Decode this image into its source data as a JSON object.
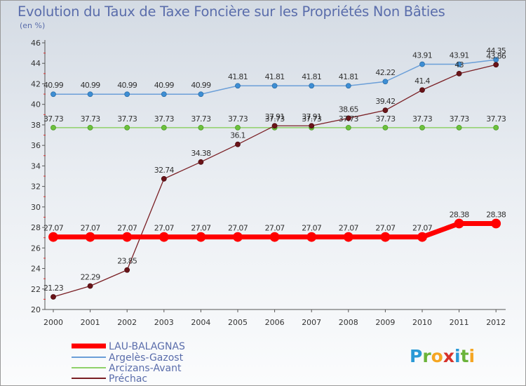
{
  "chart_data": {
    "type": "line",
    "title": "Evolution du Taux de Taxe Foncière sur les Propriétés Non Bâties",
    "subtitle": "(en %)",
    "xlabel": "",
    "ylabel": "(en %)",
    "x": [
      "2000",
      "2001",
      "2002",
      "2003",
      "2004",
      "2005",
      "2006",
      "2007",
      "2008",
      "2009",
      "2010",
      "2011",
      "2012"
    ],
    "ylim": [
      20,
      46
    ],
    "yticks": [
      20,
      22,
      24,
      26,
      28,
      30,
      32,
      34,
      36,
      38,
      40,
      42,
      44,
      46
    ],
    "grid": false,
    "legend_position": "bottom-left",
    "series": [
      {
        "name": "LAU-BALAGNAS",
        "color": "#ff0000",
        "values": [
          27.07,
          27.07,
          27.07,
          27.07,
          27.07,
          27.07,
          27.07,
          27.07,
          27.07,
          27.07,
          27.07,
          28.38,
          28.38
        ],
        "labels": [
          "27.07",
          "27.07",
          "27.07",
          "27.07",
          "27.07",
          "27.07",
          "27.07",
          "27.07",
          "27.07",
          "27.07",
          "27.07",
          "28.38",
          "28.38"
        ]
      },
      {
        "name": "Argelès-Gazost",
        "color": "#6b9fd8",
        "values": [
          40.99,
          40.99,
          40.99,
          40.99,
          40.99,
          41.81,
          41.81,
          41.81,
          41.81,
          42.22,
          43.91,
          43.91,
          44.35
        ],
        "labels": [
          "40.99",
          "40.99",
          "40.99",
          "40.99",
          "40.99",
          "41.81",
          "41.81",
          "41.81",
          "41.81",
          "42.22",
          "43.91",
          "43.91",
          "44.35"
        ]
      },
      {
        "name": "Arcizans-Avant",
        "color": "#8fd16a",
        "values": [
          37.73,
          37.73,
          37.73,
          37.73,
          37.73,
          37.73,
          37.73,
          37.73,
          37.73,
          37.73,
          37.73,
          37.73,
          37.73
        ],
        "labels": [
          "37.73",
          "37.73",
          "37.73",
          "37.73",
          "37.73",
          "37.73",
          "37.73",
          "37.73",
          "37.73",
          "37.73",
          "37.73",
          "37.73",
          "37.73"
        ]
      },
      {
        "name": "Préchac",
        "color": "#7a1f24",
        "values": [
          21.23,
          22.29,
          23.85,
          32.74,
          34.38,
          36.1,
          37.91,
          37.91,
          38.65,
          39.42,
          41.4,
          43,
          43.86
        ],
        "labels": [
          "21.23",
          "22.29",
          "23.85",
          "32.74",
          "34.38",
          "36.1",
          "37.91",
          "37.91",
          "38.65",
          "39.42",
          "41.4",
          "43",
          "43.86"
        ]
      }
    ]
  },
  "logo": {
    "text": "Proxiti"
  }
}
